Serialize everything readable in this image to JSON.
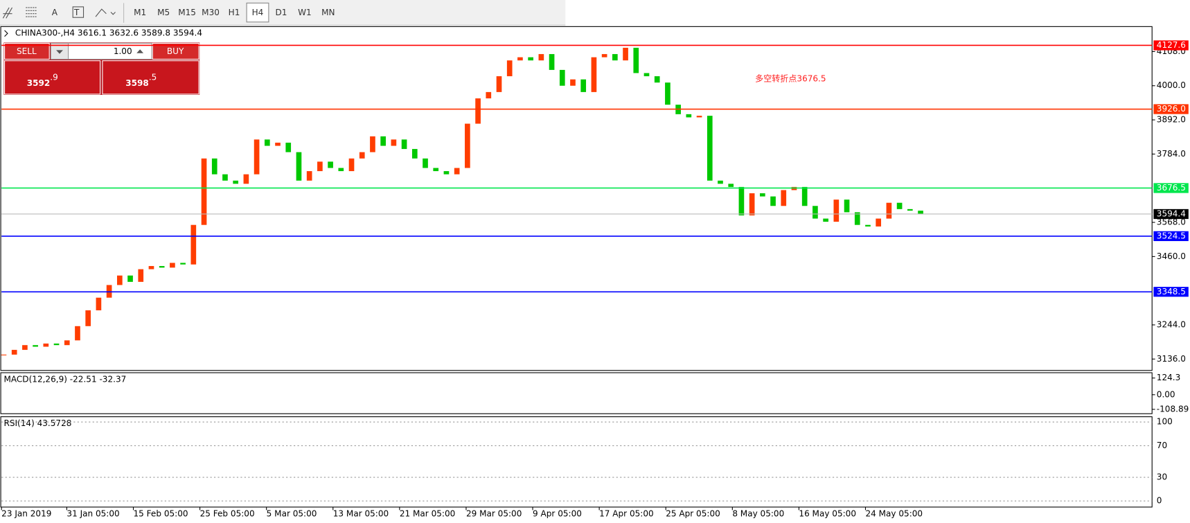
{
  "toolbar": {
    "tools": [
      "A"
    ],
    "periods": [
      "M1",
      "M5",
      "M15",
      "M30",
      "H1",
      "H4",
      "D1",
      "W1",
      "MN"
    ],
    "active": "H4"
  },
  "chart": {
    "symbol_info": "CHINA300-,H4  3616.1 3632.6 3589.8 3594.4",
    "annotation": "多空转折点3676.5",
    "ylim": [
      3100,
      4187
    ],
    "price_ticks": [
      {
        "value": 4108,
        "label": "4108.0"
      },
      {
        "value": 4000,
        "label": "4000.0"
      },
      {
        "value": 3892,
        "label": "3892.0"
      },
      {
        "value": 3784,
        "label": "3784.0"
      },
      {
        "value": 3568,
        "label": "3568.0"
      },
      {
        "value": 3460,
        "label": "3460.0"
      },
      {
        "value": 3244,
        "label": "3244.0"
      },
      {
        "value": 3136,
        "label": "3136.0"
      }
    ],
    "levels": [
      {
        "price": 4127.6,
        "color": "#ff0000"
      },
      {
        "price": 3926,
        "label": "3926.0",
        "color": "#ff3300"
      },
      {
        "price": 3676.5,
        "color": "#00e64d"
      },
      {
        "price": 3524.5,
        "color": "#0000ff"
      },
      {
        "price": 3348.5,
        "color": "#0000ff"
      }
    ],
    "current": 3594.4,
    "up_color": "#ff3d00",
    "down_color": "#00c800",
    "closes": [
      3150,
      3165,
      3180,
      3175,
      3185,
      3180,
      3195,
      3240,
      3290,
      3330,
      3370,
      3400,
      3380,
      3420,
      3430,
      3425,
      3440,
      3435,
      3560,
      3770,
      3720,
      3700,
      3690,
      3720,
      3830,
      3810,
      3820,
      3790,
      3700,
      3730,
      3760,
      3740,
      3730,
      3770,
      3790,
      3840,
      3810,
      3830,
      3800,
      3770,
      3740,
      3730,
      3720,
      3740,
      3880,
      3960,
      3980,
      4030,
      4080,
      4090,
      4080,
      4100,
      4050,
      4000,
      4020,
      3980,
      4090,
      4100,
      4080,
      4120,
      4040,
      4030,
      4010,
      3940,
      3910,
      3900,
      3905,
      3700,
      3690,
      3680,
      3590,
      3660,
      3650,
      3620,
      3670,
      3680,
      3620,
      3580,
      3570,
      3640,
      3600,
      3560,
      3555,
      3580,
      3630,
      3610,
      3605,
      3594.4
    ]
  },
  "trade_panel": {
    "sell": "SELL",
    "buy": "BUY",
    "volume": "1.00",
    "bid": {
      "main": "3592",
      "pips": ".9"
    },
    "ask": {
      "main": "3598",
      "pips": ".5"
    }
  },
  "macd": {
    "label": "MACD(12,26,9) -22.51 -32.37",
    "ylim": [
      -141.3,
      163.9
    ],
    "ticks": [
      124.3,
      {
        "value": 0,
        "label": "0.00"
      },
      -108.89
    ]
  },
  "rsi": {
    "label": "RSI(14) 43.5728",
    "ylim": [
      -7.7,
      106.7
    ],
    "ticks": [
      100,
      70,
      30,
      0
    ]
  },
  "time_axis": [
    "23 Jan 2019",
    "31 Jan 05:00",
    "15 Feb 05:00",
    "25 Feb 05:00",
    "5 Mar 05:00",
    "13 Mar 05:00",
    "21 Mar 05:00",
    "29 Mar 05:00",
    "9 Apr 05:00",
    "17 Apr 05:00",
    "25 Apr 05:00",
    "8 May 05:00",
    "16 May 05:00",
    "24 May 05:00"
  ]
}
